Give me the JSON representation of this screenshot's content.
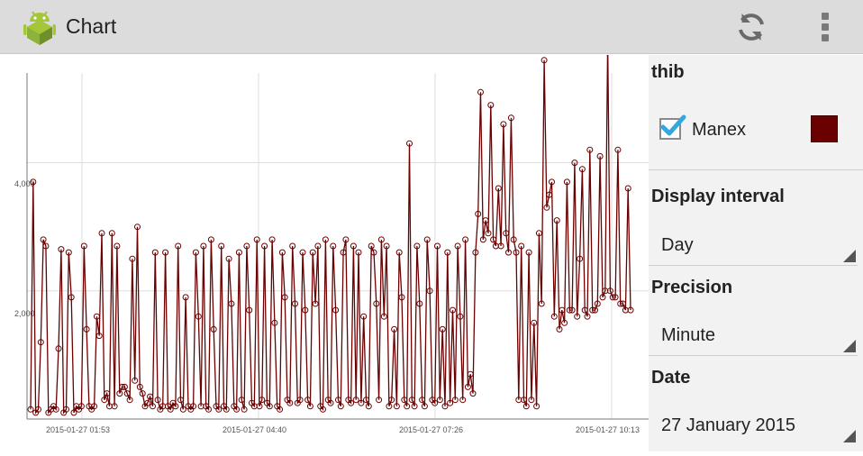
{
  "app": {
    "title": "Chart",
    "icon": "android-icon"
  },
  "actions": {
    "refresh": "refresh-icon",
    "overflow": "overflow-menu-icon"
  },
  "panel": {
    "user": "thib",
    "series_label": "Manex",
    "series_checked": true,
    "series_color": "#6b0000",
    "display_interval_title": "Display interval",
    "display_interval_value": "Day",
    "precision_title": "Precision",
    "precision_value": "Minute",
    "date_title": "Date",
    "date_value": "27 January 2015"
  },
  "chart_data": {
    "type": "line",
    "x_tick_labels": [
      "2015-01-27 01:53",
      "2015-01-27 04:40",
      "2015-01-27 07:26",
      "2015-01-27 10:13"
    ],
    "y_tick_labels": [
      "2,000",
      "4,000"
    ],
    "y_ticks": [
      2000,
      4000
    ],
    "ylim": [
      0,
      5400
    ],
    "grid": true,
    "series": [
      {
        "name": "Manex",
        "color": "#6b0000",
        "values": [
          150,
          3700,
          100,
          150,
          1200,
          2800,
          2700,
          100,
          150,
          200,
          150,
          1100,
          2650,
          100,
          150,
          2600,
          1900,
          100,
          200,
          150,
          200,
          2700,
          1400,
          200,
          150,
          200,
          1600,
          1300,
          2900,
          300,
          400,
          200,
          2900,
          200,
          2700,
          400,
          500,
          500,
          400,
          300,
          2500,
          600,
          3000,
          500,
          400,
          200,
          250,
          350,
          200,
          2600,
          300,
          150,
          200,
          2600,
          200,
          150,
          250,
          200,
          2700,
          300,
          150,
          1900,
          200,
          150,
          200,
          2600,
          1600,
          200,
          2700,
          200,
          150,
          2800,
          1400,
          200,
          150,
          2700,
          200,
          150,
          2500,
          1800,
          200,
          150,
          2600,
          300,
          150,
          2700,
          1700,
          250,
          200,
          2800,
          200,
          300,
          2700,
          250,
          200,
          2800,
          1500,
          200,
          150,
          2600,
          1900,
          300,
          250,
          2700,
          1800,
          250,
          300,
          2600,
          1700,
          300,
          200,
          2600,
          1800,
          2700,
          200,
          150,
          2800,
          300,
          250,
          2700,
          1700,
          300,
          200,
          2600,
          2800,
          300,
          250,
          2700,
          300,
          2600,
          250,
          1600,
          300,
          200,
          2700,
          2600,
          1800,
          300,
          2800,
          1600,
          2700,
          200,
          300,
          1400,
          200,
          2600,
          1900,
          300,
          200,
          4300,
          300,
          200,
          2700,
          1800,
          300,
          200,
          2800,
          2000,
          300,
          250,
          2700,
          300,
          1400,
          200,
          2600,
          250,
          1700,
          300,
          2700,
          1600,
          300,
          2800,
          500,
          700,
          400,
          2600,
          3200,
          5100,
          2800,
          3100,
          2900,
          4900,
          2800,
          2700,
          3600,
          2700,
          4600,
          2900,
          2600,
          4700,
          2800,
          2600,
          300,
          2700,
          300,
          200,
          2600,
          300,
          1500,
          200,
          2900,
          1800,
          5600,
          3300,
          3500,
          3700,
          1600,
          3100,
          1400,
          1700,
          1500,
          3700,
          1700,
          1700,
          4000,
          1600,
          2500,
          3900,
          1700,
          1600,
          4200,
          1700,
          1700,
          1800,
          4100,
          1900,
          2000,
          5900,
          2000,
          1900,
          1900,
          4200,
          1800,
          1800,
          1700,
          3600,
          1700
        ]
      }
    ]
  }
}
